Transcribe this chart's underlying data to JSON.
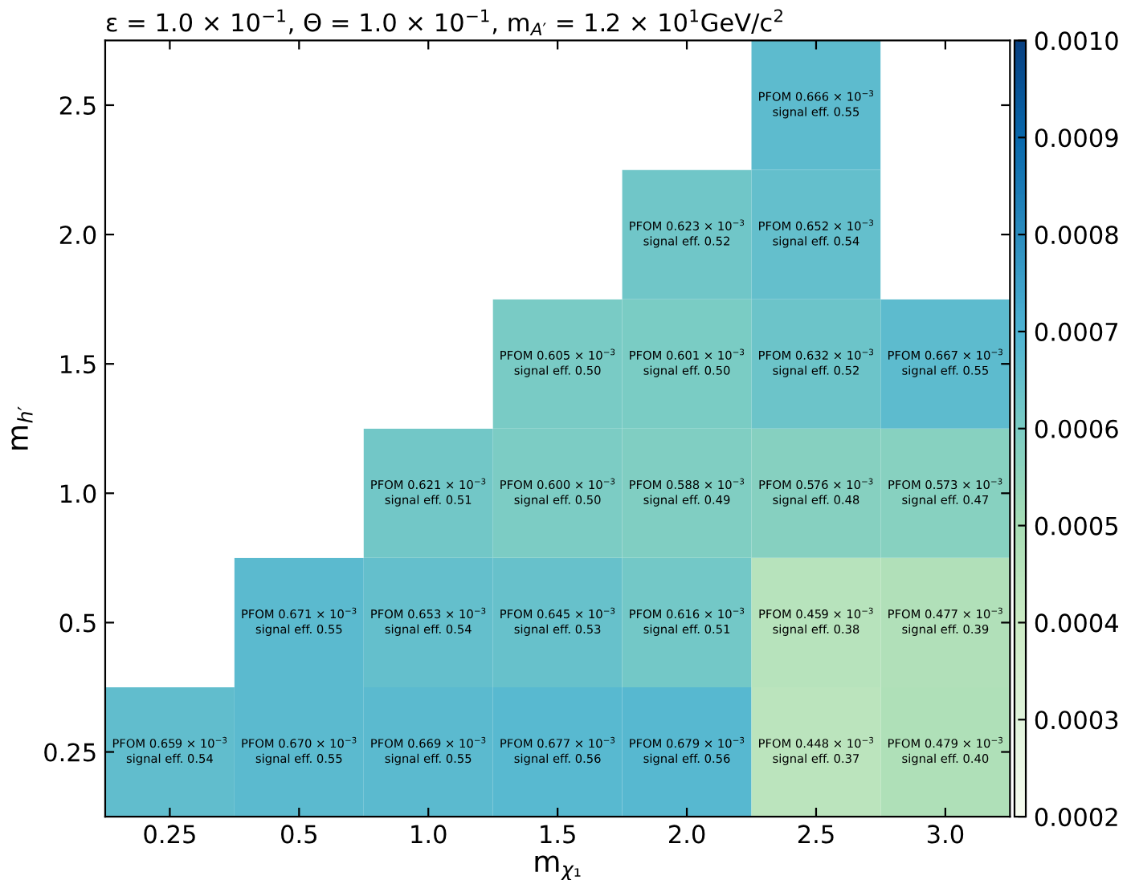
{
  "chart_data": {
    "type": "heatmap",
    "title": "ε = 1.0 × 10$^{−1}$, Θ = 1.0 × 10$^{−1}$, m$_{A′}$ = 1.2 × 10$^{1}$GeV/c$^{2}$",
    "xlabel": "m$_{χ₁}$",
    "ylabel": "m$_{h′}$",
    "categories": [
      "0.25",
      "0.5",
      "1.0",
      "1.5",
      "2.0",
      "2.5",
      "3.0"
    ],
    "y_categories": [
      "2.5",
      "2.0",
      "1.5",
      "1.0",
      "0.5",
      "0.25"
    ],
    "cells": [
      [
        null,
        null,
        null,
        null,
        null,
        0.000666,
        null
      ],
      [
        null,
        null,
        null,
        null,
        0.000623,
        0.000652,
        null
      ],
      [
        null,
        null,
        null,
        0.000605,
        0.000601,
        0.000632,
        0.000667
      ],
      [
        null,
        null,
        0.000621,
        0.0006,
        0.000588,
        0.000576,
        0.000573
      ],
      [
        null,
        0.000671,
        0.000653,
        0.000645,
        0.000616,
        0.000459,
        0.000477
      ],
      [
        0.000659,
        0.00067,
        0.000669,
        0.000677,
        0.000679,
        0.000448,
        0.000479
      ]
    ],
    "cell_labels": [
      [
        null,
        null,
        null,
        null,
        null,
        "PFOM 0.666 × 10$^{−3}$\nsignal eff. 0.55",
        null
      ],
      [
        null,
        null,
        null,
        null,
        "PFOM 0.623 × 10$^{−3}$\nsignal eff. 0.52",
        "PFOM 0.652 × 10$^{−3}$\nsignal eff. 0.54",
        null
      ],
      [
        null,
        null,
        null,
        "PFOM 0.605 × 10$^{−3}$\nsignal eff. 0.50",
        "PFOM 0.601 × 10$^{−3}$\nsignal eff. 0.50",
        "PFOM 0.632 × 10$^{−3}$\nsignal eff. 0.52",
        "PFOM 0.667 × 10$^{−3}$\nsignal eff. 0.55"
      ],
      [
        null,
        null,
        "PFOM 0.621 × 10$^{−3}$\nsignal eff. 0.51",
        "PFOM 0.600 × 10$^{−3}$\nsignal eff. 0.50",
        "PFOM 0.588 × 10$^{−3}$\nsignal eff. 0.49",
        "PFOM 0.576 × 10$^{−3}$\nsignal eff. 0.48",
        "PFOM 0.573 × 10$^{−3}$\nsignal eff. 0.47"
      ],
      [
        null,
        "PFOM 0.671 × 10$^{−3}$\nsignal eff. 0.55",
        "PFOM 0.653 × 10$^{−3}$\nsignal eff. 0.54",
        "PFOM 0.645 × 10$^{−3}$\nsignal eff. 0.53",
        "PFOM 0.616 × 10$^{−3}$\nsignal eff. 0.51",
        "PFOM 0.459 × 10$^{−3}$\nsignal eff. 0.38",
        "PFOM 0.477 × 10$^{−3}$\nsignal eff. 0.39"
      ],
      [
        "PFOM 0.659 × 10$^{−3}$\nsignal eff. 0.54",
        "PFOM 0.670 × 10$^{−3}$\nsignal eff. 0.55",
        "PFOM 0.669 × 10$^{−3}$\nsignal eff. 0.55",
        "PFOM 0.677 × 10$^{−3}$\nsignal eff. 0.56",
        "PFOM 0.679 × 10$^{−3}$\nsignal eff. 0.56",
        "PFOM 0.448 × 10$^{−3}$\nsignal eff. 0.37",
        "PFOM 0.479 × 10$^{−3}$\nsignal eff. 0.40"
      ]
    ],
    "clim": [
      0.0002,
      0.001
    ],
    "cticks": [
      {
        "value": 0.0002,
        "label": "0.0002"
      },
      {
        "value": 0.0003,
        "label": "0.0003"
      },
      {
        "value": 0.0004,
        "label": "0.0004"
      },
      {
        "value": 0.0005,
        "label": "0.0005"
      },
      {
        "value": 0.0006,
        "label": "0.0006"
      },
      {
        "value": 0.0007,
        "label": "0.0007"
      },
      {
        "value": 0.0008,
        "label": "0.0008"
      },
      {
        "value": 0.0009,
        "label": "0.0009"
      },
      {
        "value": 0.001,
        "label": "0.0010"
      }
    ]
  }
}
